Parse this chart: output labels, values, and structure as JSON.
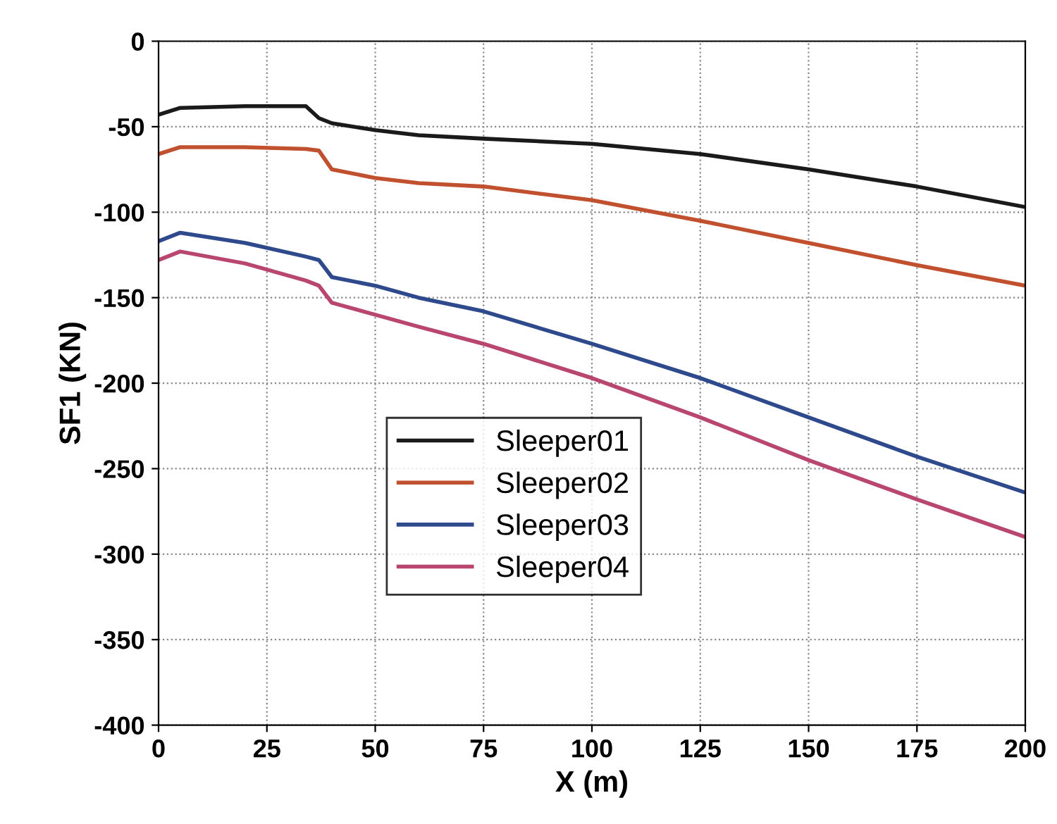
{
  "chart_data": {
    "type": "line",
    "xlabel": "X (m)",
    "ylabel": "SF1 (KN)",
    "x": [
      0,
      5,
      20,
      34,
      37,
      40,
      50,
      60,
      75,
      100,
      125,
      150,
      175,
      200
    ],
    "series": [
      {
        "name": "Sleeper01",
        "color": "#1a1a1a",
        "values": [
          -43,
          -39,
          -38,
          -38,
          -45,
          -48,
          -52,
          -55,
          -57,
          -60,
          -66,
          -75,
          -85,
          -97
        ]
      },
      {
        "name": "Sleeper02",
        "color": "#c0502e",
        "values": [
          -66,
          -62,
          -62,
          -63,
          -64,
          -75,
          -80,
          -83,
          -85,
          -93,
          -105,
          -118,
          -131,
          -143
        ]
      },
      {
        "name": "Sleeper03",
        "color": "#2e4a8c",
        "values": [
          -117,
          -112,
          -118,
          -126,
          -128,
          -138,
          -143,
          -150,
          -158,
          -177,
          -197,
          -220,
          -243,
          -264
        ]
      },
      {
        "name": "Sleeper04",
        "color": "#b8466e",
        "values": [
          -128,
          -123,
          -130,
          -140,
          -143,
          -153,
          -160,
          -167,
          -177,
          -197,
          -220,
          -245,
          -268,
          -290
        ]
      }
    ],
    "xlim": [
      0,
      200
    ],
    "xticks": [
      0,
      25,
      50,
      75,
      100,
      125,
      150,
      175,
      200
    ],
    "ylim": [
      -400,
      0
    ],
    "yticks": [
      -400,
      -350,
      -300,
      -250,
      -200,
      -150,
      -100,
      -50,
      0
    ],
    "grid": true,
    "legend": "center",
    "marker": "none",
    "line_style": "solid"
  }
}
